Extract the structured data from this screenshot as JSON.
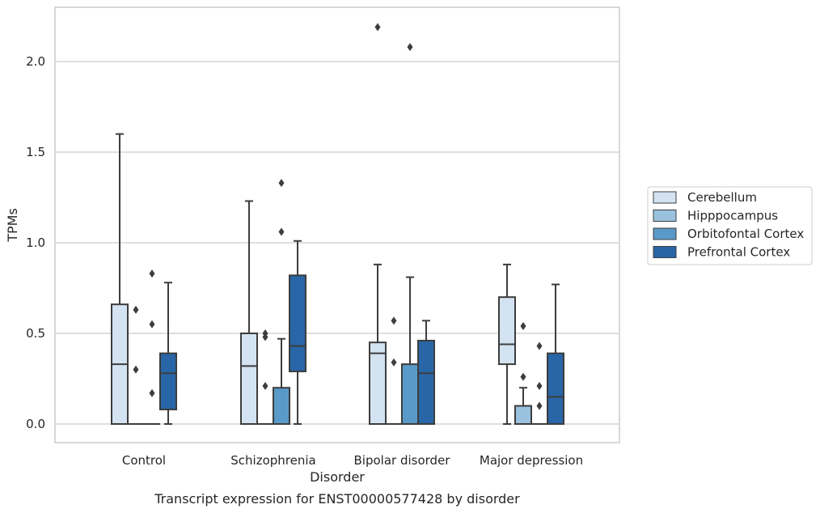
{
  "chart_data": {
    "type": "box",
    "title": "",
    "caption": "Transcript expression for ENST00000577428 by disorder",
    "xlabel": "Disorder",
    "ylabel": "TPMs",
    "ylim": [
      -0.11,
      2.3
    ],
    "yticks": [
      0.0,
      0.5,
      1.0,
      1.5,
      2.0
    ],
    "ytick_labels": [
      "0.0",
      "0.5",
      "1.0",
      "1.5",
      "2.0"
    ],
    "grid": "horizontal",
    "legend_position": "right",
    "categories": [
      "Control",
      "Schizophrenia",
      "Bipolar disorder",
      "Major depression"
    ],
    "series": [
      {
        "name": "Cerebellum",
        "color": "#d4e3f1",
        "boxes": [
          {
            "whislo": 0.0,
            "q1": 0.0,
            "med": 0.33,
            "q3": 0.66,
            "whishi": 1.6,
            "fliers": []
          },
          {
            "whislo": 0.0,
            "q1": 0.0,
            "med": 0.32,
            "q3": 0.5,
            "whishi": 1.23,
            "fliers": []
          },
          {
            "whislo": 0.0,
            "q1": 0.0,
            "med": 0.39,
            "q3": 0.45,
            "whishi": 0.88,
            "fliers": [
              2.19
            ]
          },
          {
            "whislo": 0.0,
            "q1": 0.33,
            "med": 0.44,
            "q3": 0.7,
            "whishi": 0.88,
            "fliers": []
          }
        ]
      },
      {
        "name": "Hipppocampus",
        "color": "#9ac2de",
        "boxes": [
          {
            "whislo": 0.0,
            "q1": 0.0,
            "med": 0.0,
            "q3": 0.0,
            "whishi": 0.0,
            "fliers": [
              0.3,
              0.63
            ]
          },
          {
            "whislo": 0.0,
            "q1": 0.0,
            "med": 0.0,
            "q3": 0.0,
            "whishi": 0.0,
            "fliers": [
              0.21,
              0.48,
              0.5
            ]
          },
          {
            "whislo": 0.0,
            "q1": 0.0,
            "med": 0.0,
            "q3": 0.0,
            "whishi": 0.0,
            "fliers": [
              0.34,
              0.57
            ]
          },
          {
            "whislo": 0.0,
            "q1": 0.0,
            "med": 0.0,
            "q3": 0.1,
            "whishi": 0.2,
            "fliers": [
              0.26,
              0.54
            ]
          }
        ]
      },
      {
        "name": "Orbitofontal Cortex",
        "color": "#5a9ac8",
        "boxes": [
          {
            "whislo": 0.0,
            "q1": 0.0,
            "med": 0.0,
            "q3": 0.0,
            "whishi": 0.0,
            "fliers": [
              0.17,
              0.55,
              0.83
            ]
          },
          {
            "whislo": 0.0,
            "q1": 0.0,
            "med": 0.0,
            "q3": 0.2,
            "whishi": 0.47,
            "fliers": [
              1.06,
              1.33
            ]
          },
          {
            "whislo": 0.0,
            "q1": 0.0,
            "med": 0.0,
            "q3": 0.33,
            "whishi": 0.81,
            "fliers": [
              2.08
            ]
          },
          {
            "whislo": 0.0,
            "q1": 0.0,
            "med": 0.0,
            "q3": 0.0,
            "whishi": 0.0,
            "fliers": [
              0.1,
              0.21,
              0.43
            ]
          }
        ]
      },
      {
        "name": "Prefrontal Cortex",
        "color": "#2866a8",
        "boxes": [
          {
            "whislo": 0.0,
            "q1": 0.08,
            "med": 0.28,
            "q3": 0.39,
            "whishi": 0.78,
            "fliers": []
          },
          {
            "whislo": 0.0,
            "q1": 0.29,
            "med": 0.43,
            "q3": 0.82,
            "whishi": 1.01,
            "fliers": []
          },
          {
            "whislo": 0.0,
            "q1": 0.0,
            "med": 0.28,
            "q3": 0.46,
            "whishi": 0.57,
            "fliers": []
          },
          {
            "whislo": 0.0,
            "q1": 0.0,
            "med": 0.15,
            "q3": 0.39,
            "whishi": 0.77,
            "fliers": []
          }
        ]
      }
    ]
  }
}
